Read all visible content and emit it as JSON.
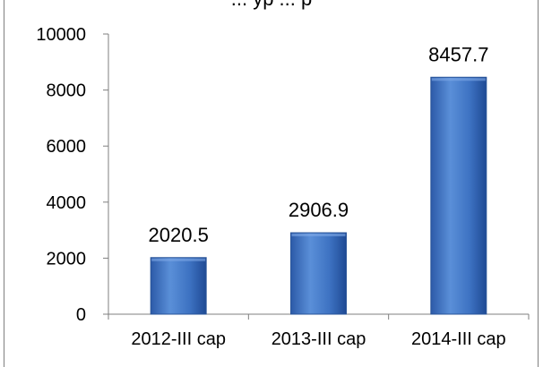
{
  "chart_data": {
    "type": "bar",
    "title": "... yp ... p",
    "categories": [
      "2012-III cap",
      "2013-III cap",
      "2014-III cap"
    ],
    "values": [
      2020.5,
      2906.9,
      8457.7
    ],
    "data_labels": [
      "2020.5",
      "2906.9",
      "8457.7"
    ],
    "ylim": [
      0,
      10000
    ],
    "yticks": [
      0,
      2000,
      4000,
      6000,
      8000,
      10000
    ],
    "xlabel": "",
    "ylabel": "",
    "grid": false,
    "legend": "none",
    "bar_color": "#3b70bf"
  }
}
